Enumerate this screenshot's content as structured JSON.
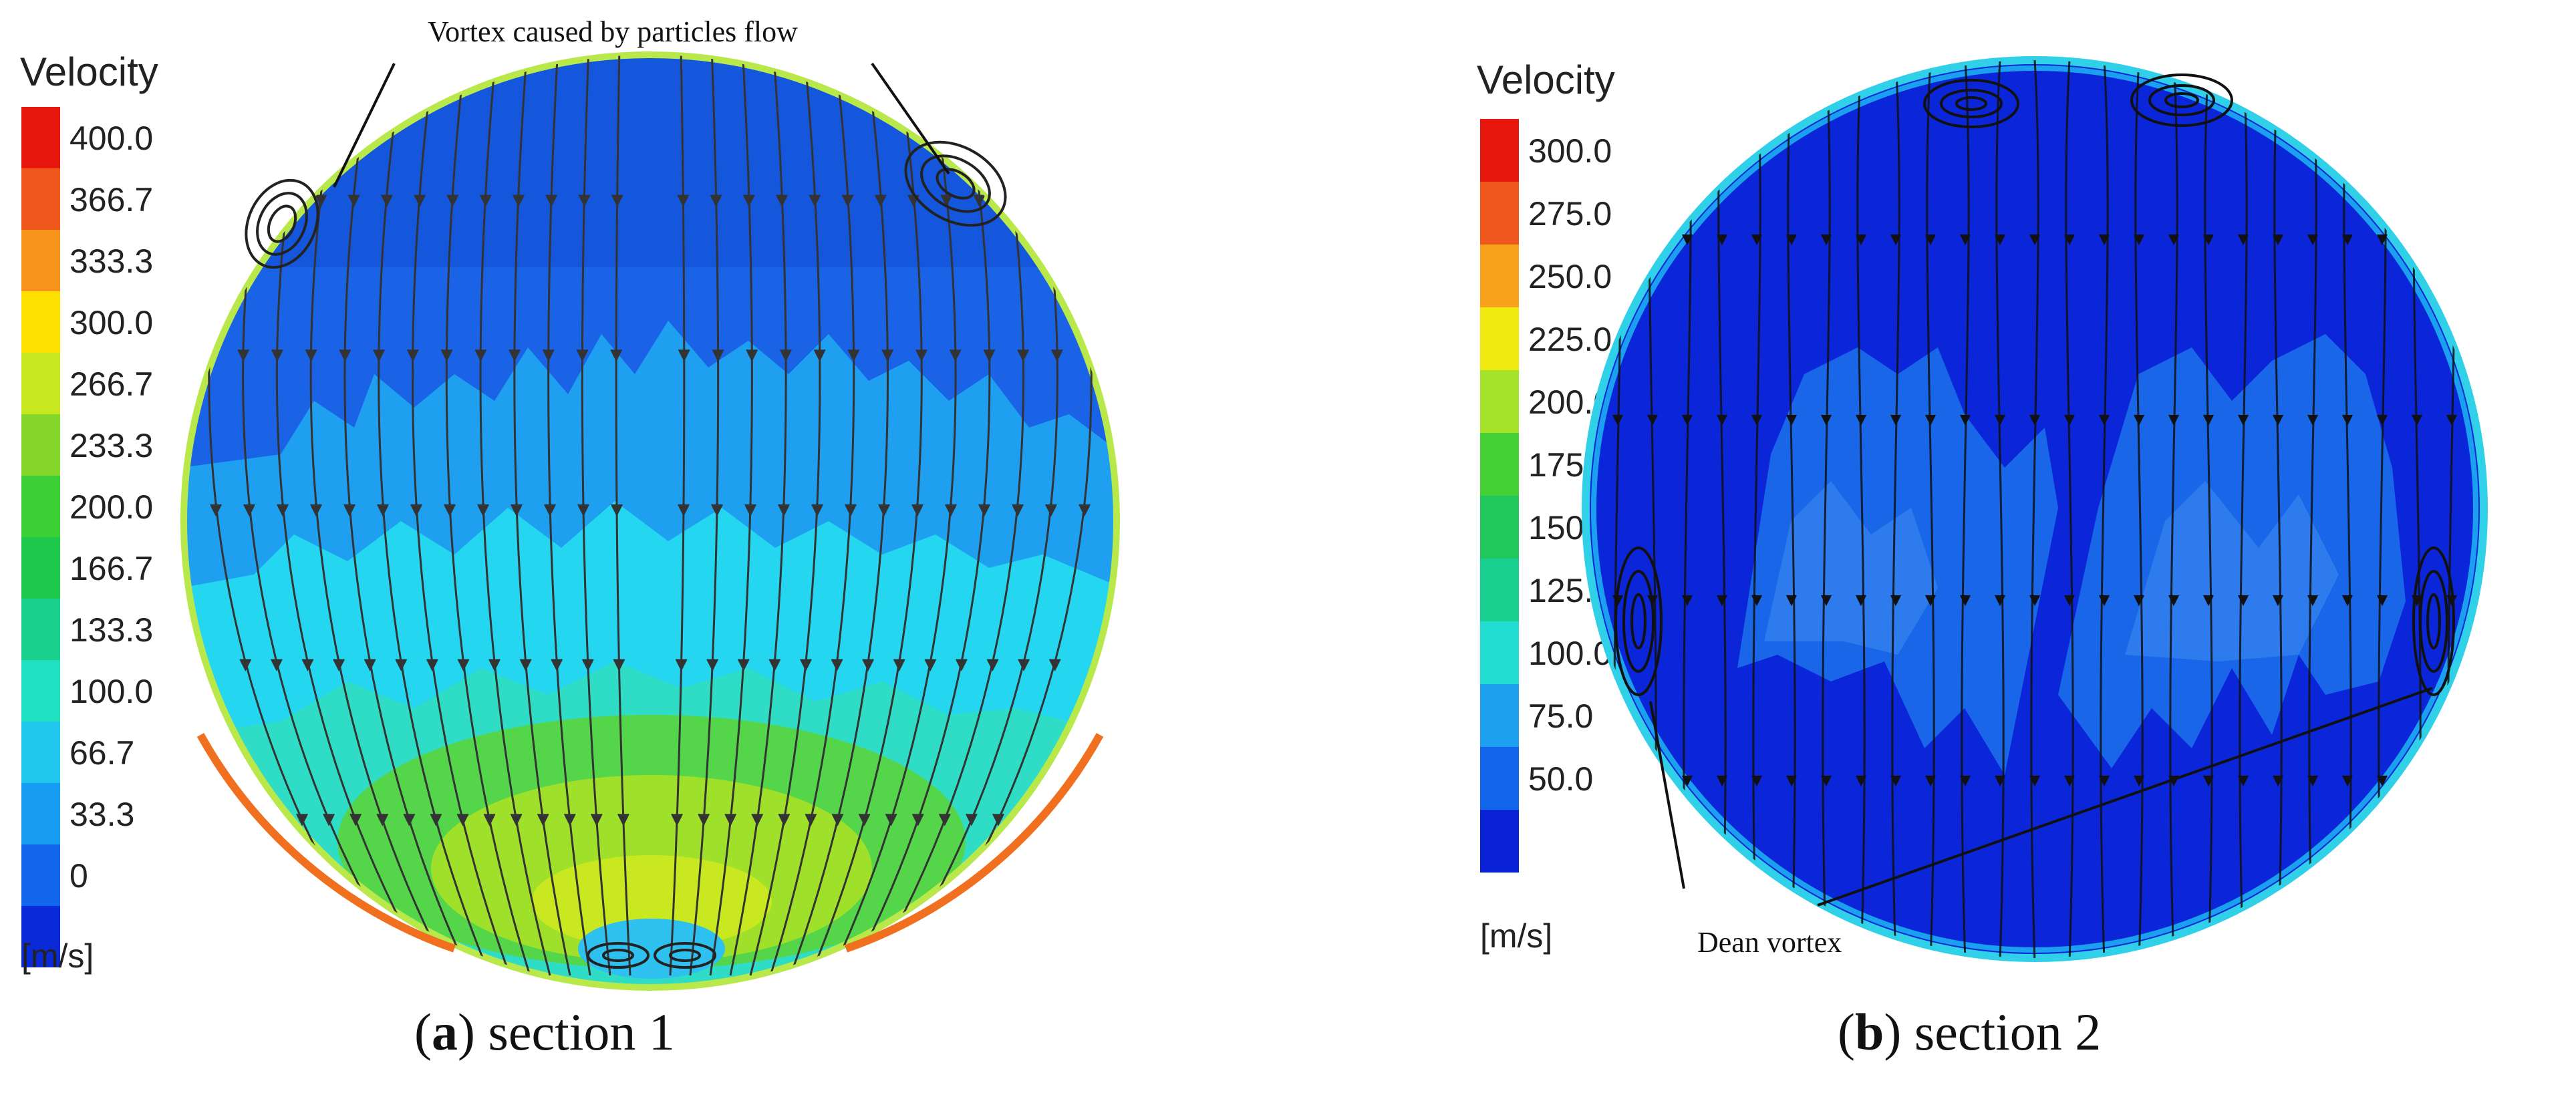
{
  "panel_a": {
    "legend_title": "Velocity",
    "unit": "[m/s]",
    "ticks": [
      "400.0",
      "366.7",
      "333.3",
      "300.0",
      "266.7",
      "233.3",
      "200.0",
      "166.7",
      "133.3",
      "100.0",
      "66.7",
      "33.3",
      "0"
    ],
    "colors": [
      "#e8170e",
      "#f1581d",
      "#f7921a",
      "#fde000",
      "#c7e820",
      "#86d72c",
      "#3ccf36",
      "#1ec84a",
      "#19d08c",
      "#20e0c2",
      "#21c8ee",
      "#169cf0",
      "#1267ec",
      "#0a2ad8"
    ],
    "annotation": "Vortex caused by particles flow",
    "caption_letter": "a",
    "caption_text": " section 1"
  },
  "panel_b": {
    "legend_title": "Velocity",
    "unit": "[m/s]",
    "ticks": [
      "300.0",
      "275.0",
      "250.0",
      "225.0",
      "200.0",
      "175.0",
      "150.0",
      "125.0",
      "100.0",
      "75.0",
      "50.0"
    ],
    "colors": [
      "#e8170e",
      "#f1581d",
      "#f7a21a",
      "#f0ea10",
      "#a6e12a",
      "#45d036",
      "#20c75a",
      "#19d090",
      "#21dcd0",
      "#1da0f0",
      "#1266ea",
      "#0a22d6"
    ],
    "annotation": "Dean vortex",
    "caption_letter": "b",
    "caption_text": " section 2"
  }
}
